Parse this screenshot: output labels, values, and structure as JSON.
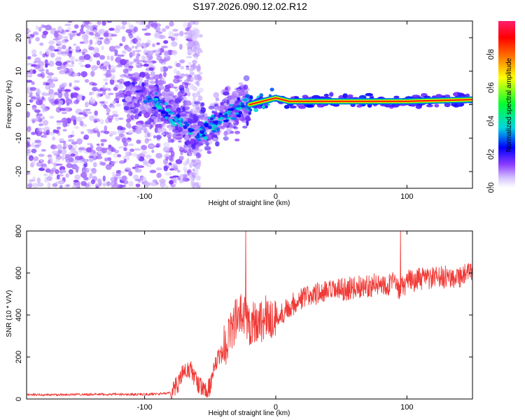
{
  "title": "S197.2026.090.12.02.R12",
  "chart_data": [
    {
      "type": "heatmap",
      "name": "spectrogram",
      "xlabel": "Height of straight line (km)",
      "ylabel": "Frequency (Hz)",
      "xlim": [
        -190,
        150
      ],
      "ylim": [
        -25,
        25
      ],
      "xticks": [
        "-100",
        "0",
        "100"
      ],
      "xtick_values": [
        -100,
        0,
        100
      ],
      "yticks": [
        "-20",
        "-10",
        "0",
        "10",
        "20"
      ],
      "ytick_values": [
        -20,
        -10,
        0,
        10,
        20
      ],
      "ridge": {
        "x": [
          -100,
          -90,
          -80,
          -70,
          -60,
          -50,
          -40,
          -30,
          -20,
          -10,
          0,
          10,
          20,
          50,
          100,
          150
        ],
        "frequency": [
          2,
          0,
          -3,
          -5,
          -9,
          -6,
          -4,
          -1,
          0,
          1,
          2,
          1,
          1,
          1,
          1,
          1.5
        ]
      }
    },
    {
      "type": "line",
      "name": "snr",
      "xlabel": "Height of straight line (km)",
      "ylabel": "SNR (10 * V/V)",
      "xlim": [
        -190,
        150
      ],
      "ylim": [
        0,
        800
      ],
      "xticks": [
        "-100",
        "0",
        "100"
      ],
      "xtick_values": [
        -100,
        0,
        100
      ],
      "yticks": [
        "0",
        "200",
        "400",
        "600",
        "800"
      ],
      "ytick_values": [
        0,
        200,
        400,
        600,
        800
      ],
      "color": "#f03a36",
      "x": [
        -190,
        -170,
        -150,
        -130,
        -110,
        -100,
        -90,
        -80,
        -75,
        -70,
        -65,
        -60,
        -55,
        -50,
        -45,
        -40,
        -35,
        -30,
        -25,
        -20,
        -15,
        -10,
        -5,
        0,
        10,
        20,
        30,
        40,
        50,
        60,
        70,
        80,
        90,
        95,
        100,
        110,
        120,
        130,
        140,
        150
      ],
      "y": [
        20,
        20,
        22,
        22,
        22,
        22,
        24,
        30,
        70,
        130,
        140,
        80,
        40,
        60,
        180,
        230,
        320,
        380,
        400,
        360,
        370,
        380,
        390,
        380,
        440,
        480,
        500,
        510,
        520,
        530,
        540,
        545,
        550,
        520,
        560,
        570,
        575,
        580,
        585,
        600
      ],
      "annotations": [
        {
          "x": -23,
          "y": 800,
          "text": "spike"
        },
        {
          "x": 95,
          "y": 800,
          "text": "spike"
        }
      ]
    }
  ],
  "colorbar": {
    "label": "Normalized spectral amplitude",
    "ticks": [
      "0.0",
      "0.2",
      "0.4",
      "0.6",
      "0.8"
    ],
    "tick_values": [
      0.0,
      0.2,
      0.4,
      0.6,
      0.8
    ],
    "range": [
      0,
      1
    ],
    "stops": [
      "#ffffff",
      "#d4c1ff",
      "#8a3bff",
      "#0000ff",
      "#00d6e0",
      "#00ff33",
      "#ffff00",
      "#ff7a00",
      "#ff0000",
      "#ff1e6e"
    ]
  }
}
